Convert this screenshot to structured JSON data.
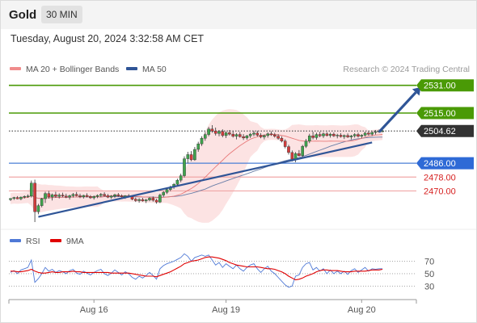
{
  "header": {
    "instrument": "Gold",
    "timeframe": "30 MIN"
  },
  "datetime": "Tuesday, August 20, 2024 3:32:58 AM CET",
  "legend": [
    {
      "label": "MA 20 + Bollinger Bands",
      "color": "#f08c8c"
    },
    {
      "label": "MA 50",
      "color": "#2f5597"
    }
  ],
  "copyright": "Research © 2024 Trading Central",
  "rsi_legend": [
    {
      "label": "RSI",
      "color": "#4f79d6"
    },
    {
      "label": "9MA",
      "color": "#e00000"
    }
  ],
  "chart_data": [
    {
      "type": "candlestick",
      "ylim": [
        2452,
        2536
      ],
      "x_ticks": [
        {
          "label": "Aug 16",
          "index": 24
        },
        {
          "label": "Aug 19",
          "index": 62
        },
        {
          "label": "Aug 20",
          "index": 101
        }
      ],
      "n_bars": 108,
      "levels": [
        {
          "value": 2531.0,
          "label": "2531.00",
          "kind": "resistance",
          "line": "#4a9a06",
          "box": "#4a9a06"
        },
        {
          "value": 2515.0,
          "label": "2515.00",
          "kind": "resistance",
          "line": "#4a9a06",
          "box": "#4a9a06"
        },
        {
          "value": 2504.62,
          "label": "2504.62",
          "kind": "last",
          "line": "#555555",
          "box": "#333333"
        },
        {
          "value": 2486.0,
          "label": "2486.00",
          "kind": "pivot",
          "line": "#4a7fd6",
          "box": "#2e6ad6"
        },
        {
          "value": 2478.0,
          "label": "2478.00",
          "kind": "support",
          "line": "#f0a6a6",
          "box": null
        },
        {
          "value": 2470.0,
          "label": "2470.00",
          "kind": "support",
          "line": "#f0a6a6",
          "box": null
        }
      ],
      "trendline": {
        "from": {
          "index": 8,
          "value": 2455
        },
        "to": {
          "index": 104,
          "value": 2498
        }
      },
      "arrow": {
        "from": {
          "index": 106,
          "value": 2504
        },
        "to": {
          "index": 118,
          "value": 2530
        }
      },
      "ohlc": [
        [
          2465.0,
          2465.8,
          2464.2,
          2465.6
        ],
        [
          2465.6,
          2466.6,
          2464.8,
          2466.2
        ],
        [
          2466.2,
          2467.0,
          2465.2,
          2465.4
        ],
        [
          2465.4,
          2466.8,
          2464.6,
          2466.4
        ],
        [
          2466.4,
          2467.4,
          2465.6,
          2466.8
        ],
        [
          2466.8,
          2468.0,
          2466.0,
          2467.0
        ],
        [
          2467.0,
          2476.0,
          2466.2,
          2474.5
        ],
        [
          2474.5,
          2476.5,
          2452.0,
          2458.0
        ],
        [
          2458.0,
          2462.5,
          2456.5,
          2461.5
        ],
        [
          2461.5,
          2466.0,
          2460.5,
          2465.5
        ],
        [
          2465.5,
          2469.5,
          2463.0,
          2468.5
        ],
        [
          2468.5,
          2470.0,
          2465.5,
          2466.5
        ],
        [
          2466.5,
          2468.5,
          2464.5,
          2467.8
        ],
        [
          2467.8,
          2469.5,
          2466.0,
          2466.8
        ],
        [
          2466.8,
          2468.6,
          2465.6,
          2467.6
        ],
        [
          2467.6,
          2469.0,
          2466.4,
          2467.0
        ],
        [
          2467.0,
          2468.4,
          2465.8,
          2466.4
        ],
        [
          2466.4,
          2467.8,
          2465.0,
          2467.2
        ],
        [
          2467.2,
          2468.8,
          2466.2,
          2468.0
        ],
        [
          2468.0,
          2469.4,
          2466.8,
          2467.2
        ],
        [
          2467.2,
          2468.4,
          2465.8,
          2466.6
        ],
        [
          2466.6,
          2467.8,
          2465.6,
          2467.4
        ],
        [
          2467.4,
          2468.6,
          2466.2,
          2466.8
        ],
        [
          2466.8,
          2467.6,
          2465.4,
          2466.0
        ],
        [
          2466.0,
          2467.4,
          2465.0,
          2466.8
        ],
        [
          2466.8,
          2468.0,
          2465.8,
          2467.4
        ],
        [
          2467.4,
          2468.8,
          2466.4,
          2468.0
        ],
        [
          2468.0,
          2469.2,
          2466.8,
          2467.2
        ],
        [
          2467.2,
          2468.2,
          2465.8,
          2466.4
        ],
        [
          2466.4,
          2467.6,
          2465.4,
          2467.0
        ],
        [
          2467.0,
          2468.4,
          2466.0,
          2467.8
        ],
        [
          2467.8,
          2468.8,
          2466.6,
          2467.2
        ],
        [
          2467.2,
          2468.0,
          2465.8,
          2466.6
        ],
        [
          2466.6,
          2467.6,
          2465.4,
          2467.2
        ],
        [
          2467.2,
          2468.2,
          2466.2,
          2466.6
        ],
        [
          2466.6,
          2467.4,
          2464.6,
          2465.2
        ],
        [
          2465.2,
          2466.2,
          2463.6,
          2464.4
        ],
        [
          2464.4,
          2465.8,
          2463.2,
          2465.0
        ],
        [
          2465.0,
          2466.0,
          2463.8,
          2464.2
        ],
        [
          2464.2,
          2465.4,
          2463.0,
          2464.8
        ],
        [
          2464.8,
          2466.4,
          2464.0,
          2465.8
        ],
        [
          2465.8,
          2466.8,
          2463.8,
          2464.6
        ],
        [
          2464.6,
          2465.4,
          2462.6,
          2463.6
        ],
        [
          2463.6,
          2468.4,
          2463.0,
          2467.6
        ],
        [
          2467.6,
          2470.0,
          2466.6,
          2469.2
        ],
        [
          2469.2,
          2471.6,
          2468.2,
          2470.8
        ],
        [
          2470.8,
          2473.0,
          2469.8,
          2472.2
        ],
        [
          2472.2,
          2474.6,
          2471.2,
          2473.8
        ],
        [
          2473.8,
          2477.0,
          2472.8,
          2476.2
        ],
        [
          2476.2,
          2480.0,
          2475.0,
          2478.8
        ],
        [
          2478.8,
          2490.0,
          2477.8,
          2488.6
        ],
        [
          2488.6,
          2492.6,
          2486.0,
          2491.0
        ],
        [
          2491.0,
          2493.0,
          2487.2,
          2488.0
        ],
        [
          2488.0,
          2495.4,
          2487.4,
          2494.0
        ],
        [
          2494.0,
          2498.4,
          2492.6,
          2497.2
        ],
        [
          2497.2,
          2501.6,
          2496.0,
          2500.4
        ],
        [
          2500.4,
          2504.0,
          2499.0,
          2502.6
        ],
        [
          2502.6,
          2507.0,
          2501.6,
          2505.8
        ],
        [
          2505.8,
          2508.0,
          2503.6,
          2504.6
        ],
        [
          2504.6,
          2506.6,
          2502.0,
          2503.2
        ],
        [
          2503.2,
          2505.2,
          2501.6,
          2504.4
        ],
        [
          2504.4,
          2505.6,
          2501.0,
          2502.0
        ],
        [
          2502.0,
          2504.4,
          2500.6,
          2503.6
        ],
        [
          2503.6,
          2505.2,
          2502.0,
          2502.8
        ],
        [
          2502.8,
          2504.6,
          2500.8,
          2501.6
        ],
        [
          2501.6,
          2503.4,
          2499.8,
          2502.6
        ],
        [
          2502.6,
          2504.0,
          2500.8,
          2501.4
        ],
        [
          2501.4,
          2502.8,
          2499.4,
          2500.6
        ],
        [
          2500.6,
          2502.4,
          2499.6,
          2501.8
        ],
        [
          2501.8,
          2503.6,
          2500.6,
          2502.8
        ],
        [
          2502.8,
          2504.6,
          2501.6,
          2503.4
        ],
        [
          2503.4,
          2504.8,
          2501.4,
          2502.2
        ],
        [
          2502.2,
          2503.4,
          2500.4,
          2501.2
        ],
        [
          2501.2,
          2502.6,
          2499.8,
          2502.0
        ],
        [
          2502.0,
          2503.8,
          2500.8,
          2503.0
        ],
        [
          2503.0,
          2504.4,
          2501.8,
          2502.4
        ],
        [
          2502.4,
          2503.6,
          2500.8,
          2501.6
        ],
        [
          2501.6,
          2502.8,
          2499.6,
          2500.4
        ],
        [
          2500.4,
          2501.6,
          2498.0,
          2498.8
        ],
        [
          2498.8,
          2499.8,
          2494.6,
          2495.6
        ],
        [
          2495.6,
          2496.6,
          2491.0,
          2492.2
        ],
        [
          2492.2,
          2493.4,
          2487.0,
          2488.4
        ],
        [
          2488.4,
          2492.4,
          2486.6,
          2491.6
        ],
        [
          2491.6,
          2493.6,
          2489.8,
          2490.4
        ],
        [
          2490.4,
          2496.6,
          2489.6,
          2495.8
        ],
        [
          2495.8,
          2500.0,
          2494.8,
          2498.8
        ],
        [
          2498.8,
          2503.0,
          2497.6,
          2501.8
        ],
        [
          2501.8,
          2504.2,
          2499.8,
          2500.8
        ],
        [
          2500.8,
          2503.6,
          2499.6,
          2502.6
        ],
        [
          2502.6,
          2504.2,
          2501.0,
          2501.8
        ],
        [
          2501.8,
          2503.8,
          2500.6,
          2503.0
        ],
        [
          2503.0,
          2504.0,
          2501.4,
          2502.0
        ],
        [
          2502.0,
          2503.6,
          2500.8,
          2502.8
        ],
        [
          2502.8,
          2503.8,
          2501.2,
          2501.8
        ],
        [
          2501.8,
          2503.0,
          2500.4,
          2502.2
        ],
        [
          2502.2,
          2503.4,
          2500.8,
          2501.4
        ],
        [
          2501.4,
          2502.6,
          2500.0,
          2502.0
        ],
        [
          2502.0,
          2503.2,
          2500.6,
          2501.2
        ],
        [
          2501.2,
          2502.4,
          2499.8,
          2501.8
        ],
        [
          2501.8,
          2503.4,
          2500.8,
          2502.6
        ],
        [
          2502.6,
          2503.6,
          2500.8,
          2501.6
        ],
        [
          2501.6,
          2502.8,
          2500.4,
          2502.2
        ],
        [
          2502.2,
          2504.2,
          2501.4,
          2503.4
        ],
        [
          2503.4,
          2504.6,
          2502.0,
          2502.8
        ],
        [
          2502.8,
          2504.4,
          2501.8,
          2503.8
        ],
        [
          2503.8,
          2505.2,
          2502.6,
          2504.2
        ],
        [
          2504.2,
          2505.4,
          2503.6,
          2504.6
        ],
        [
          2504.6,
          2505.4,
          2504.0,
          2504.6
        ]
      ]
    },
    {
      "type": "line",
      "title": "RSI",
      "ylim": [
        20,
        85
      ],
      "y_ticks": [
        70,
        50,
        30
      ],
      "series": [
        {
          "name": "RSI",
          "color": "#4f79d6",
          "values": [
            52,
            55,
            50,
            56,
            58,
            60,
            72,
            36,
            42,
            50,
            60,
            54,
            57,
            52,
            55,
            53,
            50,
            55,
            57,
            51,
            49,
            54,
            51,
            48,
            52,
            55,
            57,
            50,
            47,
            51,
            56,
            52,
            48,
            53,
            50,
            44,
            41,
            46,
            43,
            47,
            52,
            47,
            41,
            58,
            63,
            66,
            68,
            70,
            73,
            76,
            82,
            78,
            70,
            76,
            78,
            80,
            78,
            80,
            72,
            64,
            68,
            60,
            66,
            62,
            58,
            64,
            58,
            54,
            60,
            64,
            66,
            58,
            52,
            58,
            62,
            54,
            50,
            44,
            38,
            32,
            28,
            30,
            46,
            48,
            60,
            66,
            68,
            56,
            60,
            54,
            58,
            50,
            56,
            50,
            54,
            50,
            54,
            49,
            55,
            58,
            52,
            56,
            60,
            54,
            58,
            57,
            58,
            58
          ]
        },
        {
          "name": "9MA",
          "color": "#e00000",
          "values": [
            54,
            54,
            53,
            53,
            54,
            55,
            57,
            54,
            52,
            51,
            51,
            52,
            53,
            52,
            52,
            53,
            53,
            53,
            54,
            53,
            53,
            52,
            52,
            52,
            52,
            52,
            52,
            52,
            52,
            51,
            51,
            51,
            51,
            51,
            51,
            50,
            49,
            48,
            47,
            46,
            46,
            46,
            45,
            47,
            49,
            51,
            53,
            56,
            59,
            62,
            66,
            68,
            70,
            71,
            72,
            74,
            76,
            77,
            77,
            76,
            75,
            73,
            71,
            68,
            66,
            64,
            63,
            62,
            61,
            61,
            61,
            61,
            60,
            59,
            58,
            58,
            57,
            55,
            53,
            50,
            46,
            43,
            40,
            41,
            43,
            46,
            48,
            50,
            53,
            55,
            56,
            56,
            55,
            55,
            55,
            54,
            53,
            53,
            53,
            54,
            54,
            54,
            54,
            55,
            56,
            56,
            56,
            57
          ]
        }
      ]
    }
  ]
}
